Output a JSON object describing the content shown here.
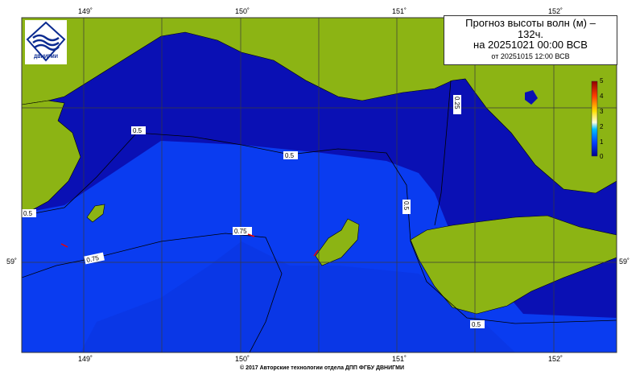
{
  "title": {
    "line1": "Прогноз высоты волн (м) –",
    "line2": "132ч.",
    "line3": "на 20251021 00:00 ВСВ",
    "line4": "от 20251015 12:00 ВСВ"
  },
  "logo": {
    "text": "ДВНИГМИ"
  },
  "axes": {
    "longitude_ticks": [
      "149˚",
      "150˚",
      "151˚",
      "152˚"
    ],
    "latitude_ticks": [
      "59˚"
    ]
  },
  "legend": {
    "ticks": [
      "5",
      "4",
      "3",
      "2",
      "1",
      "0"
    ],
    "colors": [
      "#000090",
      "#0040ff",
      "#00c0ff",
      "#ffffe0",
      "#ffe000",
      "#ff6000",
      "#900000"
    ]
  },
  "contours": {
    "labels": [
      "0.5",
      "0.5",
      "0.5",
      "0.5",
      "0.5",
      "0.25",
      "0.75",
      "0.75"
    ]
  },
  "colors": {
    "land": "#8cb414",
    "sea_deep": "#0a10b4",
    "sea_open": "#0a3cf0"
  },
  "footer": "© 2017 Авторские технологии отдела ДПП ФГБУ ДВНИГМИ"
}
